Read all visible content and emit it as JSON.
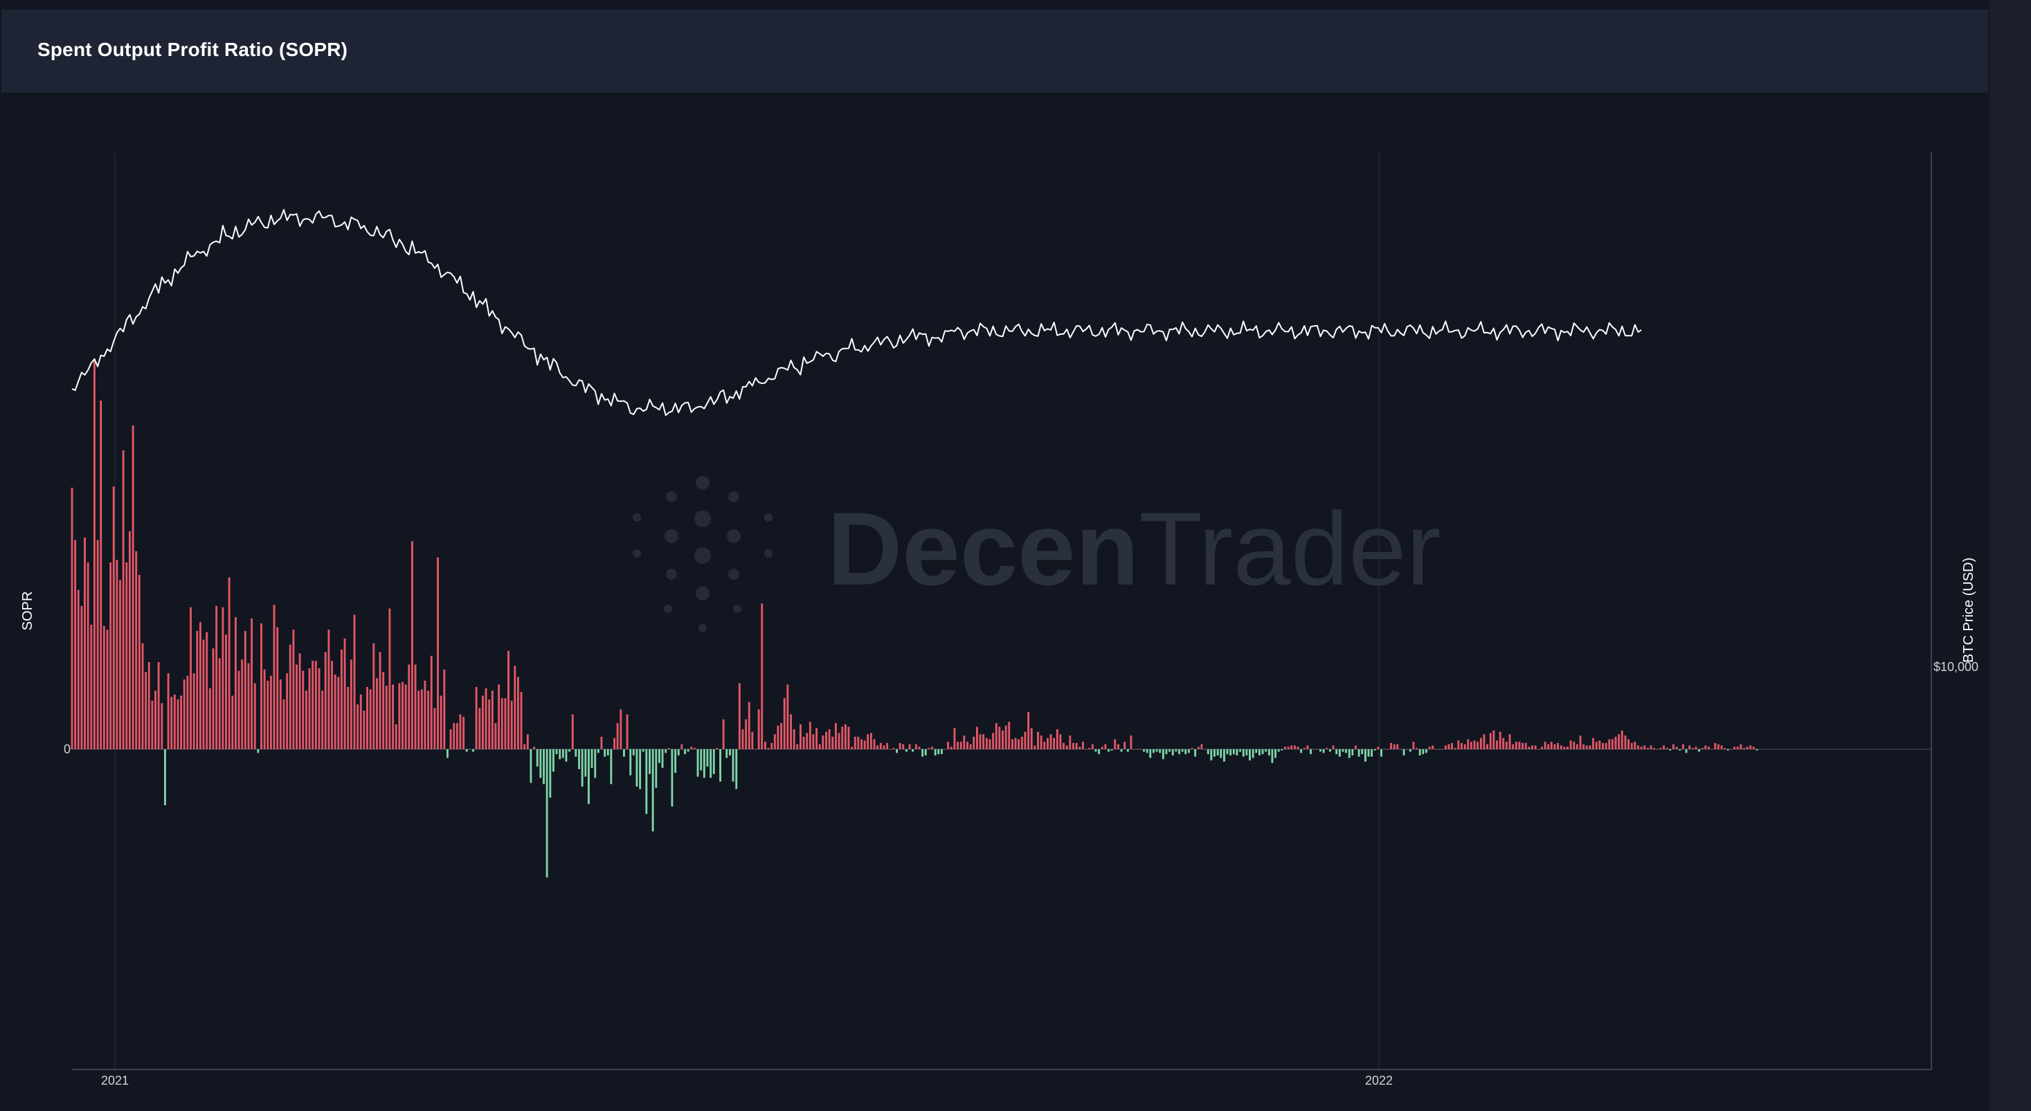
{
  "panel": {
    "title": "Spent Output Profit Ratio (SOPR)"
  },
  "watermark": {
    "brand_bold": "Decen",
    "brand_light": "Trader"
  },
  "colors": {
    "background": "#121620",
    "header": "#1e2433",
    "positive_bar": "#e45866",
    "negative_bar": "#7fd6a8",
    "price_line": "#ffffff",
    "grid": "#2b3140"
  },
  "chart_data": {
    "type": "bar",
    "title": "Spent Output Profit Ratio (SOPR)",
    "ylabel": "SOPR",
    "ylabel_right": "BTC Price (USD)",
    "x_tick_labels": [
      "2021",
      "2022"
    ],
    "y_tick_labels": [
      "0"
    ],
    "y_right_tick_labels": [
      "$10,000"
    ],
    "x_range": [
      "2020-12-11",
      "2022-06-30"
    ],
    "series": [
      {
        "type": "bar",
        "values": [
          2.1,
          1.68,
          1.28,
          1.15,
          1.7,
          1.5,
          1.0,
          3.13,
          1.68,
          2.8,
          0.99,
          0.96,
          1.5,
          2.11,
          1.52,
          1.36,
          2.4,
          1.5,
          1.75,
          2.6,
          1.59,
          1.4,
          0.85,
          0.62,
          0.7,
          0.39,
          0.47,
          0.7,
          0.37,
          -0.45,
          0.61,
          0.42,
          0.44,
          0.4,
          0.43,
          0.56,
          0.59,
          1.14,
          0.61,
          0.95,
          1.02,
          0.88,
          0.94,
          0.49,
          0.81,
          1.15,
          0.73,
          1.14,
          0.92,
          1.38,
          0.43,
          1.06,
          0.63,
          0.72,
          0.95,
          0.69,
          1.05,
          0.53,
          -0.03,
          1.01,
          0.64,
          0.55,
          0.59,
          1.16,
          0.98,
          0.56,
          0.4,
          0.61,
          0.84,
          0.96,
          0.68,
          0.77,
          0.63,
          0.47,
          0.65,
          0.71,
          0.71,
          0.65,
          0.47,
          0.78,
          0.96,
          0.71,
          0.6,
          0.58,
          0.8,
          0.89,
          0.5,
          0.72,
          1.08,
          0.36,
          0.44,
          0.31,
          0.5,
          0.48,
          0.85,
          0.57,
          0.78,
          0.62,
          0.51,
          1.13,
          0.52,
          0.2,
          0.53,
          0.54,
          0.52,
          0.68,
          1.67,
          0.68,
          0.47,
          0.48,
          0.55,
          0.47,
          0.75,
          0.33,
          1.54,
          0.43,
          0.64,
          -0.07,
          0.16,
          0.21,
          0.21,
          0.28,
          0.26,
          -0.02,
          0.0,
          -0.02,
          0.5,
          0.33,
          0.43,
          0.49,
          0.4,
          0.47,
          0.21,
          0.52,
          0.41,
          0.41,
          0.79,
          0.39,
          0.67,
          0.58,
          0.46,
          0.04,
          0.12,
          -0.27,
          0.02,
          -0.14,
          -0.23,
          -0.28,
          -1.03,
          -0.39,
          -0.18,
          -0.04,
          -0.08,
          -0.07,
          -0.1,
          -0.02,
          0.28,
          -0.06,
          -0.16,
          -0.3,
          -0.22,
          -0.44,
          -0.15,
          -0.23,
          -0.03,
          0.1,
          -0.06,
          -0.05,
          -0.28,
          0.09,
          0.21,
          0.32,
          -0.06,
          0.28,
          -0.21,
          -0.05,
          -0.3,
          -0.32,
          -0.02,
          -0.52,
          -0.2,
          -0.66,
          -0.31,
          -0.11,
          -0.15,
          -0.03,
          0.01,
          -0.46,
          -0.19,
          -0.05,
          0.04,
          -0.04,
          -0.02,
          0.02,
          0.01,
          -0.22,
          -0.17,
          -0.23,
          -0.14,
          -0.23,
          -0.2,
          0.01,
          -0.26,
          0.24,
          -0.07,
          -0.05,
          -0.26,
          -0.32,
          0.53,
          0.16,
          0.24,
          0.38,
          0.14,
          0.0,
          0.32,
          1.17,
          0.06,
          0.01,
          0.05,
          0.12,
          0.19,
          0.21,
          0.41,
          0.52,
          0.28,
          0.16,
          0.04,
          0.2,
          0.1,
          0.13,
          0.22,
          0.12,
          0.17,
          0.04,
          0.11,
          0.14,
          0.16,
          0.1,
          0.21,
          0.13,
          0.18,
          0.2,
          0.18,
          0.02,
          0.1,
          0.1,
          0.08,
          0.07,
          0.12,
          0.13,
          0.08,
          0.03,
          0.05,
          0.03,
          0.05,
          0.0,
          0.01,
          -0.03,
          0.05,
          0.04,
          -0.02,
          0.04,
          -0.02,
          0.04,
          0.02,
          -0.06,
          -0.05,
          0.01,
          0.02,
          -0.05,
          -0.04,
          -0.04,
          0.0,
          0.06,
          0.02,
          0.17,
          0.06,
          0.06,
          0.11,
          0.06,
          0.04,
          0.1,
          0.18,
          0.12,
          0.12,
          0.09,
          0.08,
          0.13,
          0.21,
          0.18,
          0.15,
          0.19,
          0.22,
          0.08,
          0.09,
          0.08,
          0.1,
          0.14,
          0.3,
          0.17,
          0.03,
          0.14,
          0.11,
          0.06,
          0.09,
          0.12,
          0.09,
          0.16,
          0.12,
          0.05,
          0.03,
          0.11,
          0.05,
          0.05,
          0.02,
          0.06,
          0.0,
          0.01,
          0.04,
          -0.02,
          -0.04,
          0.02,
          0.04,
          -0.02,
          -0.01,
          0.08,
          0.04,
          -0.02,
          0.06,
          -0.02,
          0.11,
          0.0,
          0.0,
          0.0,
          -0.02,
          -0.03,
          -0.07,
          -0.03,
          -0.02,
          -0.03,
          -0.08,
          -0.04,
          -0.02,
          -0.05,
          -0.02,
          -0.04,
          -0.02,
          -0.04,
          -0.03,
          0.01,
          -0.06,
          0.02,
          0.04,
          0.0,
          -0.04,
          -0.09,
          -0.06,
          -0.05,
          -0.07,
          -0.1,
          -0.04,
          -0.05,
          -0.04,
          -0.05,
          -0.02,
          -0.06,
          -0.05,
          -0.09,
          -0.07,
          -0.03,
          -0.05,
          -0.04,
          -0.02,
          -0.05,
          -0.11,
          -0.07,
          -0.02,
          -0.01,
          0.02,
          0.02,
          0.03,
          0.03,
          0.02,
          -0.03,
          0.01,
          0.03,
          -0.04,
          0.0,
          0.0,
          -0.02,
          -0.03,
          0.01,
          -0.02,
          0.03,
          -0.04,
          -0.06,
          -0.02,
          -0.03,
          -0.07,
          -0.05,
          0.03,
          -0.06,
          -0.04,
          -0.1,
          -0.06,
          -0.06,
          -0.01,
          0.02,
          -0.06,
          0.0,
          0.0,
          0.05,
          0.04,
          0.04,
          0.0,
          -0.05,
          0.0,
          -0.02,
          0.06,
          0.01,
          -0.05,
          -0.04,
          -0.03,
          0.02,
          0.03,
          0.0,
          0.0,
          0.0,
          0.03,
          0.04,
          0.05,
          0.01,
          0.07,
          0.05,
          0.04,
          0.08,
          0.06,
          0.07,
          0.06,
          0.09,
          0.12,
          0.04,
          0.13,
          0.15,
          0.07,
          0.14,
          0.09,
          0.06,
          0.12,
          0.04,
          0.06,
          0.06,
          0.05,
          0.05,
          0.02,
          0.03,
          0.03,
          0.0,
          0.02,
          0.06,
          0.04,
          0.06,
          0.04,
          0.05,
          0.03,
          0.02,
          0.02,
          0.07,
          0.06,
          0.04,
          0.11,
          0.04,
          0.03,
          0.03,
          0.09,
          0.06,
          0.07,
          0.05,
          0.05,
          0.08,
          0.08,
          0.1,
          0.12,
          0.15,
          0.11,
          0.08,
          0.05,
          0.06,
          0.03,
          0.02,
          0.03,
          0.01,
          0.03,
          0.01,
          0.0,
          0.01,
          0.03,
          0.01,
          -0.01,
          0.04,
          0.02,
          -0.01,
          0.04,
          -0.03,
          0.03,
          0.01,
          0.02,
          -0.02,
          0.01,
          0.03,
          0.02,
          0.0,
          0.05,
          0.04,
          0.03,
          0.01,
          -0.01,
          0.0,
          0.02,
          0.02,
          0.04,
          0.01,
          0.02,
          0.03,
          0.02,
          -0.01
        ],
        "color": "#e45866",
        "negative_color": "#7fd6a8"
      },
      {
        "type": "line",
        "values": [
          0.9,
          0.9,
          0.91,
          0.91,
          0.92,
          0.92,
          0.93,
          0.93,
          0.94,
          0.95,
          0.95,
          0.96,
          0.97,
          0.97,
          0.98,
          0.99,
          0.99,
          1.0,
          1.01,
          1.01,
          1.02,
          1.02,
          1.03,
          1.04,
          1.04,
          1.05,
          1.06,
          1.06,
          1.07,
          1.07,
          1.08,
          1.08,
          1.09,
          1.09,
          1.1,
          1.1,
          1.11,
          1.11,
          1.12,
          1.12,
          1.12,
          1.13,
          1.13,
          1.13,
          1.14,
          1.14,
          1.14,
          1.15,
          1.15,
          1.15,
          1.15,
          1.16,
          1.16,
          1.16,
          1.16,
          1.17,
          1.17,
          1.17,
          1.17,
          1.17,
          1.17,
          1.17,
          1.18,
          1.18,
          1.18,
          1.18,
          1.18,
          1.18,
          1.18,
          1.18,
          1.18,
          1.18,
          1.18,
          1.18,
          1.18,
          1.18,
          1.18,
          1.18,
          1.18,
          1.18,
          1.18,
          1.18,
          1.18,
          1.17,
          1.17,
          1.17,
          1.17,
          1.17,
          1.17,
          1.17,
          1.17,
          1.16,
          1.16,
          1.16,
          1.16,
          1.16,
          1.15,
          1.15,
          1.15,
          1.15,
          1.14,
          1.14,
          1.14,
          1.14,
          1.13,
          1.13,
          1.13,
          1.12,
          1.12,
          1.12,
          1.11,
          1.11,
          1.11,
          1.1,
          1.1,
          1.09,
          1.09,
          1.08,
          1.08,
          1.08,
          1.07,
          1.07,
          1.06,
          1.06,
          1.05,
          1.05,
          1.04,
          1.04,
          1.03,
          1.03,
          1.02,
          1.02,
          1.01,
          1.01,
          1.0,
          1.0,
          0.99,
          0.99,
          0.98,
          0.98,
          0.97,
          0.97,
          0.96,
          0.96,
          0.96,
          0.95,
          0.95,
          0.94,
          0.94,
          0.93,
          0.93,
          0.93,
          0.92,
          0.92,
          0.91,
          0.91,
          0.91,
          0.9,
          0.9,
          0.9,
          0.89,
          0.89,
          0.89,
          0.89,
          0.88,
          0.88,
          0.88,
          0.88,
          0.87,
          0.87,
          0.87,
          0.87,
          0.87,
          0.86,
          0.86,
          0.86,
          0.86,
          0.86,
          0.86,
          0.86,
          0.86,
          0.86,
          0.86,
          0.86,
          0.86,
          0.86,
          0.86,
          0.86,
          0.86,
          0.86,
          0.86,
          0.86,
          0.86,
          0.86,
          0.86,
          0.86,
          0.87,
          0.87,
          0.87,
          0.87,
          0.87,
          0.87,
          0.88,
          0.88,
          0.88,
          0.88,
          0.88,
          0.89,
          0.89,
          0.89,
          0.89,
          0.9,
          0.9,
          0.9,
          0.9,
          0.91,
          0.91,
          0.91,
          0.91,
          0.92,
          0.92,
          0.92,
          0.92,
          0.93,
          0.93,
          0.93,
          0.93,
          0.93,
          0.94,
          0.94,
          0.94,
          0.94,
          0.94,
          0.95,
          0.95,
          0.95,
          0.95,
          0.95,
          0.95,
          0.95,
          0.96,
          0.96,
          0.96,
          0.96,
          0.96,
          0.96,
          0.96,
          0.96,
          0.97,
          0.97,
          0.97,
          0.97,
          0.97,
          0.97,
          0.97,
          0.97,
          0.97,
          0.97,
          0.98,
          0.98,
          0.98,
          0.98,
          0.98,
          0.98,
          0.98,
          0.98,
          0.98,
          0.98,
          0.98,
          0.98,
          0.98,
          0.98,
          0.98,
          0.98,
          0.99,
          0.99,
          0.99,
          0.99,
          0.99,
          0.99,
          0.99,
          0.99,
          0.99,
          0.99,
          0.99,
          0.99,
          0.99,
          0.99,
          0.99,
          0.99,
          0.99,
          0.99,
          0.99,
          0.99,
          0.99,
          0.99,
          0.99,
          0.99,
          0.99,
          0.99,
          0.99,
          0.99,
          0.99,
          0.99,
          0.99,
          0.99,
          0.99,
          0.99,
          0.99,
          0.99,
          0.99,
          0.99,
          0.99,
          0.99,
          0.99,
          0.99,
          0.99,
          0.99,
          0.99,
          0.99,
          0.99,
          0.99,
          0.99,
          0.99,
          0.99,
          0.99,
          0.99,
          0.99,
          0.99,
          0.99,
          0.99,
          0.99,
          0.99,
          0.99,
          0.99,
          0.99,
          0.99,
          0.99,
          0.99,
          0.99,
          0.99,
          0.99,
          0.99,
          0.99,
          0.99,
          0.99,
          0.99,
          0.99,
          0.99,
          0.99,
          0.99,
          0.99,
          0.99,
          0.99,
          0.99,
          0.99,
          0.99,
          0.99,
          0.99,
          0.99,
          0.99,
          0.99,
          0.99,
          0.99,
          0.99,
          0.99,
          0.99,
          0.99,
          0.99,
          0.99,
          0.99,
          0.99,
          0.99,
          0.99,
          0.99,
          0.99,
          0.99,
          0.99,
          0.99,
          0.99,
          0.99,
          0.99,
          0.99,
          0.99,
          0.99,
          0.99,
          0.99,
          0.99,
          0.99,
          0.99,
          0.99,
          0.99,
          0.99,
          0.99,
          0.99,
          0.99,
          0.99,
          0.99,
          0.99,
          0.99,
          0.99,
          0.99,
          0.99,
          0.99,
          0.99,
          0.99,
          0.99,
          0.99,
          0.99,
          0.99,
          0.99,
          0.99,
          0.99,
          0.99,
          0.99,
          0.99,
          0.99,
          0.99,
          0.99,
          0.99,
          0.99,
          0.99,
          0.99,
          0.99,
          0.99,
          0.99,
          0.99,
          0.99,
          0.99,
          0.99,
          0.99,
          0.99,
          0.99,
          0.99,
          0.99,
          0.99,
          0.99,
          0.99,
          0.99,
          0.99,
          0.99,
          0.99,
          0.99,
          0.99,
          0.99,
          0.99,
          0.99,
          0.99,
          0.99,
          0.99,
          0.99,
          0.99,
          0.99,
          0.99,
          0.99,
          0.99,
          0.99,
          0.99,
          0.99,
          0.99,
          0.99,
          0.99,
          0.99,
          0.99,
          0.99,
          0.99,
          0.99,
          0.99,
          0.99,
          0.99,
          0.99,
          0.99,
          0.99,
          0.99,
          0.99,
          0.99,
          0.99,
          0.99,
          0.99,
          0.99,
          0.99,
          0.99,
          0.99,
          0.99,
          0.99,
          0.99,
          0.99,
          0.99,
          0.99,
          0.99
        ],
        "color": "#ffffff"
      }
    ],
    "grid": true,
    "legend": "none"
  }
}
